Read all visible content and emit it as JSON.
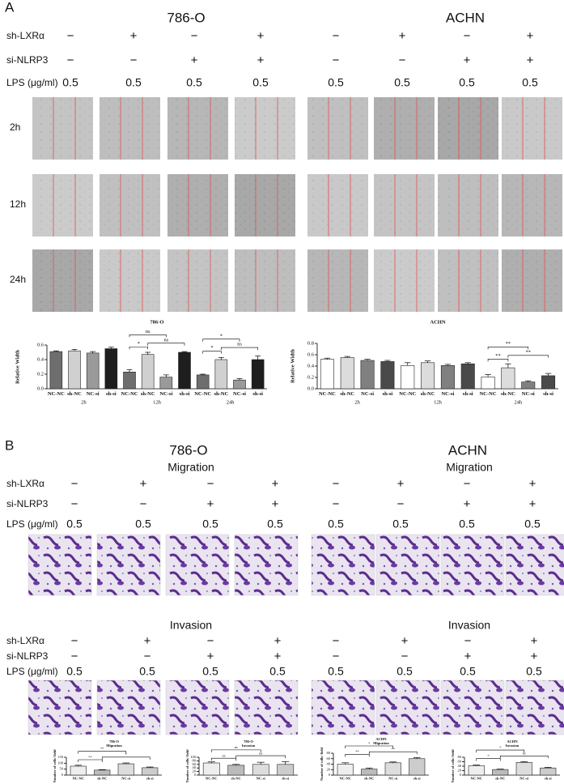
{
  "panel_a": {
    "label": "A",
    "cell_lines": [
      "786-O",
      "ACHN"
    ],
    "rows": [
      {
        "label": "sh-LXRα",
        "values": [
          "−",
          "+",
          "−",
          "+",
          "−",
          "+",
          "−",
          "+"
        ]
      },
      {
        "label": "si-NLRP3",
        "values": [
          "−",
          "−",
          "+",
          "+",
          "−",
          "−",
          "+",
          "+"
        ]
      },
      {
        "label": "LPS (μg/ml)",
        "values": [
          0.5,
          0.5,
          0.5,
          0.5,
          0.5,
          0.5,
          0.5,
          0.5
        ]
      }
    ],
    "times": [
      "2h",
      "12h",
      "24h"
    ]
  },
  "panel_b": {
    "label": "B",
    "cell_lines": [
      "786-O",
      "ACHN"
    ],
    "migration": {
      "title": "Migration",
      "rows": [
        {
          "label": "sh-LXRα",
          "values": [
            "−",
            "+",
            "−",
            "+",
            "−",
            "+",
            "−",
            "+"
          ]
        },
        {
          "label": "si-NLRP3",
          "values": [
            "−",
            "−",
            "+",
            "+",
            "−",
            "−",
            "+",
            "+"
          ]
        },
        {
          "label": "LPS (μg/ml)",
          "values": [
            0.5,
            0.5,
            0.5,
            0.5,
            0.5,
            0.5,
            0.5,
            0.5
          ]
        }
      ]
    },
    "invasion": {
      "title": "Invasion",
      "rows": [
        {
          "label": "sh-LXRα",
          "values": [
            "−",
            "+",
            "−",
            "+",
            "−",
            "+",
            "−",
            "+"
          ]
        },
        {
          "label": "si-NLRP3",
          "values": [
            "−",
            "−",
            "+",
            "+",
            "−",
            "−",
            "+",
            "+"
          ]
        },
        {
          "label": "LPS (μg/ml)",
          "values": [
            0.5,
            0.5,
            0.5,
            0.5,
            0.5,
            0.5,
            0.5,
            0.5
          ]
        }
      ]
    }
  },
  "chart_data": [
    {
      "type": "bar",
      "title": "786-O",
      "y_label": "Relative Width",
      "categories": [
        "NC-NC",
        "sh-NC",
        "NC-si",
        "sh-si",
        "NC-NC",
        "sh-NC",
        "NC-si",
        "sh-si",
        "NC-NC",
        "sh-NC",
        "NC-si",
        "sh-si"
      ],
      "groups": [
        "2h",
        "12h",
        "24h"
      ],
      "values": [
        0.51,
        0.52,
        0.49,
        0.55,
        0.23,
        0.47,
        0.16,
        0.5,
        0.19,
        0.4,
        0.12,
        0.4
      ],
      "errors": [
        0.01,
        0.02,
        0.02,
        0.02,
        0.03,
        0.03,
        0.03,
        0.01,
        0.01,
        0.03,
        0.02,
        0.05
      ],
      "colors": [
        "#6e6e6e",
        "#d0d0d0",
        "#9a9a9a",
        "#1e1e1e"
      ],
      "ylim": [
        0,
        0.6
      ],
      "yticks": [
        {
          "value": 0,
          "label": "0.0"
        },
        0.2,
        0.4,
        0.6
      ],
      "annotations": [
        "ns",
        "*",
        "ns",
        "*",
        "*",
        "ns"
      ]
    },
    {
      "type": "bar",
      "title": "ACHN",
      "y_label": "Relative Width",
      "categories": [
        "NC-NC",
        "sh-NC",
        "NC-si",
        "sh-si",
        "NC-NC",
        "sh-NC",
        "NC-si",
        "sh-si",
        "NC-NC",
        "sh-NC",
        "NC-si",
        "sh-si"
      ],
      "groups": [
        "2h",
        "12h",
        "24h"
      ],
      "values": [
        0.52,
        0.55,
        0.5,
        0.48,
        0.41,
        0.46,
        0.41,
        0.44,
        0.21,
        0.37,
        0.12,
        0.23
      ],
      "errors": [
        0.02,
        0.02,
        0.02,
        0.02,
        0.05,
        0.03,
        0.02,
        0.02,
        0.04,
        0.07,
        0.02,
        0.04
      ],
      "colors": [
        "#ffffff",
        "#dcdcdc",
        "#808080",
        "#4a4a4a"
      ],
      "ylim": [
        0,
        0.8
      ],
      "yticks": [
        {
          "value": 0,
          "label": "0.0"
        },
        0.2,
        0.4,
        0.6,
        0.8
      ],
      "annotations": [
        "**",
        "**",
        "**"
      ]
    },
    {
      "type": "bar",
      "title": "786-O",
      "subtitle": "Migration",
      "y_label": "Number of cells/ field",
      "categories": [
        "NC-NC",
        "sh-NC",
        "NC-si",
        "sh-si"
      ],
      "values": [
        75,
        42,
        95,
        62
      ],
      "errors": [
        8,
        4,
        7,
        6
      ],
      "colors": [
        "#eeeeee",
        "#bbbbbb",
        "#dddddd",
        "#cccccc"
      ],
      "ylim": [
        0,
        150
      ],
      "yticks": [
        0,
        50,
        100,
        150
      ],
      "annotations": [
        "**",
        "**",
        "*"
      ]
    },
    {
      "type": "bar",
      "title": "786-O",
      "subtitle": "Invasion",
      "y_label": "Number of cells/ field",
      "categories": [
        "NC-NC",
        "sh-NC",
        "NC-si",
        "sh-si"
      ],
      "values": [
        68,
        55,
        60,
        60
      ],
      "errors": [
        6,
        5,
        12,
        16
      ],
      "colors": [
        "#eeeeee",
        "#bbbbbb",
        "#dddddd",
        "#cccccc"
      ],
      "ylim": [
        0,
        100
      ],
      "yticks": [
        0,
        20,
        40,
        60,
        80,
        100
      ],
      "annotations": [
        "ns",
        "ns",
        "ns"
      ]
    },
    {
      "type": "bar",
      "title": "ACHN",
      "subtitle": "Migration",
      "y_label": "Number of cells/ field",
      "categories": [
        "NC-NC",
        "sh-NC",
        "NC-si",
        "sh-si"
      ],
      "values": [
        40,
        22,
        45,
        60
      ],
      "errors": [
        5,
        4,
        3,
        4
      ],
      "colors": [
        "#eeeeee",
        "#bbbbbb",
        "#dddddd",
        "#cccccc"
      ],
      "ylim": [
        0,
        80
      ],
      "yticks": [
        0,
        20,
        40,
        60,
        80
      ],
      "annotations": [
        "*",
        "**",
        "**"
      ]
    },
    {
      "type": "bar",
      "title": "ACHN",
      "subtitle": "Invasion",
      "y_label": "Number of cells/ field",
      "categories": [
        "NC-NC",
        "sh-NC",
        "NC-si",
        "sh-si"
      ],
      "values": [
        42,
        25,
        57,
        32
      ],
      "errors": [
        3,
        2,
        3,
        3
      ],
      "colors": [
        "#eeeeee",
        "#bbbbbb",
        "#dddddd",
        "#cccccc"
      ],
      "ylim": [
        0,
        80
      ],
      "yticks": [
        0,
        20,
        40,
        60,
        80
      ],
      "annotations": [
        "*",
        "*",
        "ns"
      ]
    }
  ]
}
